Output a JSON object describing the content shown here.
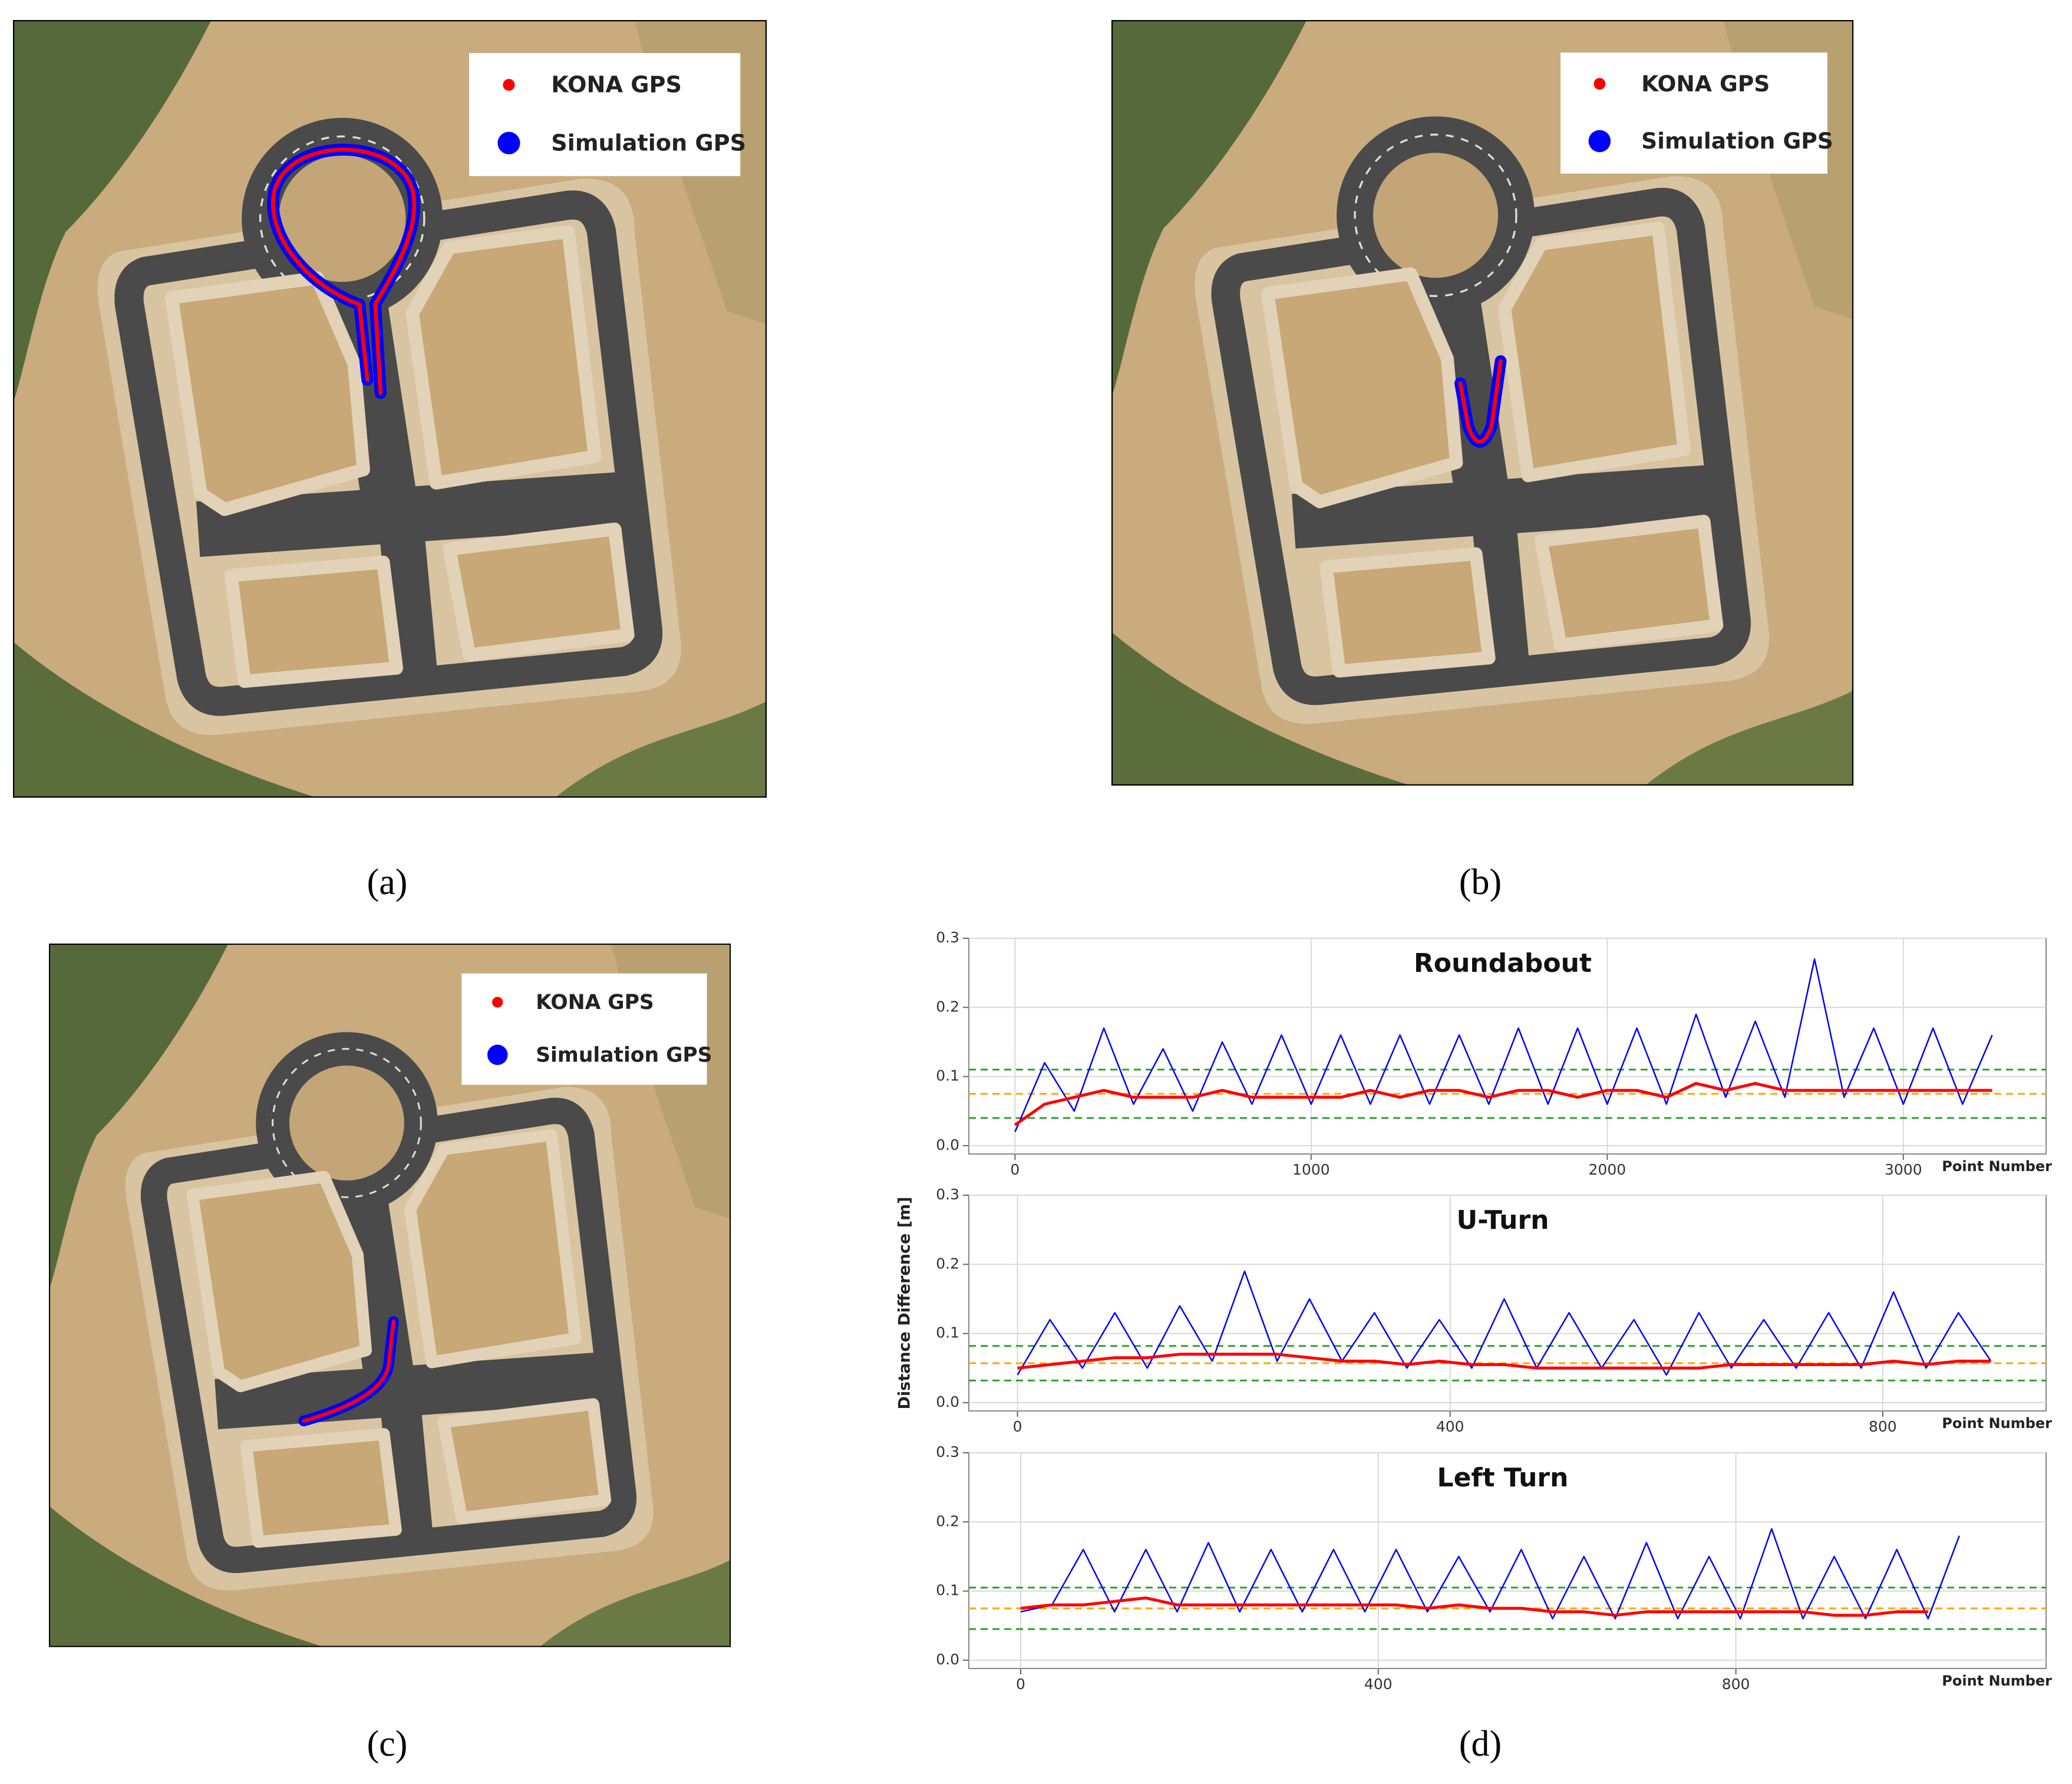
{
  "panels": [
    {
      "label": "(a)",
      "legend": [
        "KONA GPS",
        "Simulation GPS"
      ]
    },
    {
      "label": "(b)",
      "legend": [
        "KONA GPS",
        "Simulation GPS"
      ]
    },
    {
      "label": "(c)",
      "legend": [
        "KONA GPS",
        "Simulation GPS"
      ]
    }
  ],
  "chart_caption": "(d)",
  "chart_data": [
    {
      "type": "line",
      "title": "Roundabout",
      "xlabel": "Point Number",
      "xlim": [
        -156,
        3482
      ],
      "xticks": [
        0,
        1000,
        2000,
        3000
      ],
      "ylim": [
        -0.012,
        0.3
      ],
      "yticks": [
        {
          "value": 0,
          "label": "0.0"
        },
        0.1,
        0.2,
        0.3
      ],
      "grid": true,
      "hlines": [
        {
          "value": 0.11,
          "color": "#2ca02c"
        },
        {
          "value": 0.075,
          "color": "#ffa500"
        },
        {
          "value": 0.04,
          "color": "#2ca02c"
        }
      ],
      "x": [
        0,
        100,
        200,
        300,
        400,
        500,
        600,
        700,
        800,
        900,
        1000,
        1100,
        1200,
        1300,
        1400,
        1500,
        1600,
        1700,
        1800,
        1900,
        2000,
        2100,
        2200,
        2300,
        2400,
        2500,
        2600,
        2700,
        2800,
        2900,
        3000,
        3100,
        3200,
        3300
      ],
      "series": [
        {
          "color": "#0000ff",
          "values": [
            0.02,
            0.12,
            0.05,
            0.17,
            0.06,
            0.14,
            0.05,
            0.15,
            0.06,
            0.16,
            0.06,
            0.16,
            0.06,
            0.16,
            0.06,
            0.16,
            0.06,
            0.17,
            0.06,
            0.17,
            0.06,
            0.17,
            0.06,
            0.19,
            0.07,
            0.18,
            0.07,
            0.27,
            0.07,
            0.17,
            0.06,
            0.17,
            0.06,
            0.16
          ]
        },
        {
          "color": "#ff0000",
          "values": [
            0.03,
            0.06,
            0.07,
            0.08,
            0.07,
            0.07,
            0.07,
            0.08,
            0.07,
            0.07,
            0.07,
            0.07,
            0.08,
            0.07,
            0.08,
            0.08,
            0.07,
            0.08,
            0.08,
            0.07,
            0.08,
            0.08,
            0.07,
            0.09,
            0.08,
            0.09,
            0.08,
            0.08,
            0.08,
            0.08,
            0.08,
            0.08,
            0.08,
            0.08
          ]
        }
      ]
    },
    {
      "type": "line",
      "title": "U-Turn",
      "xlabel": "Point Number",
      "ylabel": "Distance Difference [m]",
      "xlim": [
        -45,
        951
      ],
      "xticks": [
        0,
        400,
        800
      ],
      "ylim": [
        -0.012,
        0.3
      ],
      "yticks": [
        {
          "value": 0,
          "label": "0.0"
        },
        0.1,
        0.2,
        0.3
      ],
      "grid": true,
      "hlines": [
        {
          "value": 0.082,
          "color": "#2ca02c"
        },
        {
          "value": 0.057,
          "color": "#ffa500"
        },
        {
          "value": 0.032,
          "color": "#2ca02c"
        }
      ],
      "x": [
        0,
        30,
        60,
        90,
        120,
        150,
        180,
        210,
        240,
        270,
        300,
        330,
        360,
        390,
        420,
        450,
        480,
        510,
        540,
        570,
        600,
        630,
        660,
        690,
        720,
        750,
        780,
        810,
        840,
        870,
        900
      ],
      "series": [
        {
          "color": "#0000ff",
          "values": [
            0.04,
            0.12,
            0.05,
            0.13,
            0.05,
            0.14,
            0.06,
            0.19,
            0.06,
            0.15,
            0.06,
            0.13,
            0.05,
            0.12,
            0.05,
            0.15,
            0.05,
            0.13,
            0.05,
            0.12,
            0.04,
            0.13,
            0.05,
            0.12,
            0.05,
            0.13,
            0.05,
            0.16,
            0.05,
            0.13,
            0.06
          ]
        },
        {
          "color": "#ff0000",
          "values": [
            0.05,
            0.055,
            0.06,
            0.065,
            0.065,
            0.07,
            0.07,
            0.07,
            0.07,
            0.065,
            0.06,
            0.06,
            0.055,
            0.06,
            0.055,
            0.055,
            0.05,
            0.05,
            0.05,
            0.05,
            0.05,
            0.05,
            0.055,
            0.055,
            0.055,
            0.055,
            0.055,
            0.06,
            0.055,
            0.06,
            0.06
          ]
        }
      ]
    },
    {
      "type": "line",
      "title": "Left Turn",
      "xlabel": "Point Number",
      "xlim": [
        -58,
        1147
      ],
      "xticks": [
        0,
        400,
        800
      ],
      "ylim": [
        -0.012,
        0.3
      ],
      "yticks": [
        {
          "value": 0,
          "label": "0.0"
        },
        0.1,
        0.2,
        0.3
      ],
      "grid": true,
      "hlines": [
        {
          "value": 0.105,
          "color": "#2ca02c"
        },
        {
          "value": 0.075,
          "color": "#ffa500"
        },
        {
          "value": 0.045,
          "color": "#2ca02c"
        }
      ],
      "x": [
        0,
        35,
        70,
        105,
        140,
        175,
        210,
        245,
        280,
        315,
        350,
        385,
        420,
        455,
        490,
        525,
        560,
        595,
        630,
        665,
        700,
        735,
        770,
        805,
        840,
        875,
        910,
        945,
        980,
        1015,
        1050
      ],
      "series": [
        {
          "color": "#0000ff",
          "values": [
            0.07,
            0.08,
            0.16,
            0.07,
            0.16,
            0.07,
            0.17,
            0.07,
            0.16,
            0.07,
            0.16,
            0.07,
            0.16,
            0.07,
            0.15,
            0.07,
            0.16,
            0.06,
            0.15,
            0.06,
            0.17,
            0.06,
            0.15,
            0.06,
            0.19,
            0.06,
            0.15,
            0.06,
            0.16,
            0.06,
            0.18
          ]
        },
        {
          "color": "#ff0000",
          "values": [
            0.075,
            0.08,
            0.08,
            0.085,
            0.09,
            0.08,
            0.08,
            0.08,
            0.08,
            0.08,
            0.08,
            0.08,
            0.08,
            0.075,
            0.08,
            0.075,
            0.075,
            0.07,
            0.07,
            0.065,
            0.07,
            0.07,
            0.07,
            0.07,
            0.07,
            0.07,
            0.065,
            0.065,
            0.07,
            0.07,
            null
          ]
        }
      ]
    }
  ]
}
